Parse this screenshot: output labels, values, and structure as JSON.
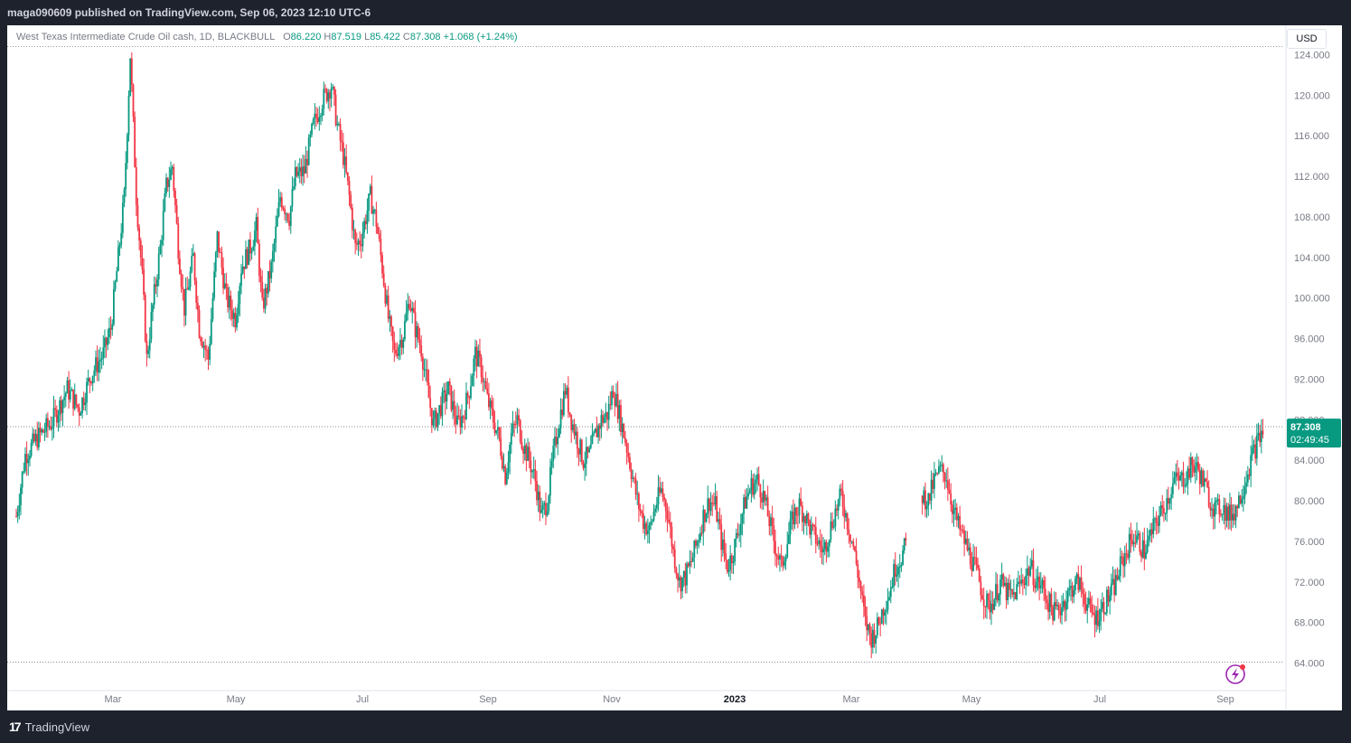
{
  "header": {
    "publish_text": "maga090609 published on TradingView.com, Sep 06, 2023 12:10 UTC-6"
  },
  "legend": {
    "symbol": "West Texas Intermediate Crude Oil cash, 1D, BLACKBULL",
    "o_label": "O",
    "o": "86.220",
    "h_label": "H",
    "h": "87.519",
    "l_label": "L",
    "l": "85.422",
    "c_label": "C",
    "c": "87.308",
    "change": "+1.068 (+1.24%)"
  },
  "currency": "USD",
  "price_tag": {
    "price": "87.308",
    "countdown": "02:49:45"
  },
  "footer": {
    "brand": "TradingView"
  },
  "colors": {
    "up": "#089981",
    "down": "#f23645",
    "grid": "#f0f3fa",
    "axis_text": "#787b86"
  },
  "chart_data": {
    "type": "candlestick",
    "title": "West Texas Intermediate Crude Oil cash, 1D, BLACKBULL",
    "ylim": [
      62,
      126
    ],
    "y_ticks": [
      "124.000",
      "120.000",
      "116.000",
      "112.000",
      "108.000",
      "104.000",
      "100.000",
      "96.000",
      "92.000",
      "88.000",
      "84.000",
      "80.000",
      "76.000",
      "72.000",
      "68.000",
      "64.000"
    ],
    "x_ticks": [
      "Mar",
      "May",
      "Jul",
      "Sep",
      "Nov",
      "2023",
      "Mar",
      "May",
      "Jul",
      "Sep"
    ],
    "last_price": 87.308,
    "reference_lines": [
      124.8,
      87.308,
      64.1
    ],
    "grid": false,
    "series": [
      {
        "price_path": [
          [
            0,
            78.5
          ],
          [
            6,
            84.5
          ],
          [
            14,
            86.2
          ],
          [
            24,
            87.8
          ],
          [
            34,
            91.0
          ],
          [
            42,
            89.0
          ],
          [
            50,
            92.5
          ],
          [
            58,
            94.5
          ],
          [
            63,
            97.0
          ],
          [
            68,
            104.0
          ],
          [
            72,
            110.0
          ],
          [
            76,
            124.0
          ],
          [
            80,
            110.0
          ],
          [
            84,
            102.0
          ],
          [
            87,
            94.0
          ],
          [
            90,
            98.0
          ],
          [
            96,
            105.0
          ],
          [
            100,
            111.0
          ],
          [
            104,
            113.0
          ],
          [
            108,
            105.0
          ],
          [
            112,
            99.0
          ],
          [
            118,
            104.0
          ],
          [
            122,
            97.0
          ],
          [
            128,
            94.0
          ],
          [
            134,
            106.0
          ],
          [
            140,
            100.0
          ],
          [
            146,
            98.0
          ],
          [
            150,
            103.0
          ],
          [
            156,
            105.0
          ],
          [
            160,
            107.0
          ],
          [
            164,
            99.0
          ],
          [
            170,
            103.0
          ],
          [
            176,
            110.0
          ],
          [
            182,
            108.0
          ],
          [
            186,
            112.0
          ],
          [
            192,
            112.5
          ],
          [
            198,
            117.0
          ],
          [
            204,
            119.5
          ],
          [
            210,
            121.0
          ],
          [
            214,
            117.0
          ],
          [
            218,
            114.0
          ],
          [
            222,
            110.0
          ],
          [
            226,
            105.0
          ],
          [
            230,
            106.0
          ],
          [
            236,
            110.0
          ],
          [
            240,
            107.5
          ],
          [
            244,
            103.0
          ],
          [
            248,
            98.0
          ],
          [
            252,
            94.5
          ],
          [
            258,
            96.5
          ],
          [
            262,
            100.0
          ],
          [
            266,
            97.0
          ],
          [
            270,
            95.0
          ],
          [
            274,
            91.0
          ],
          [
            278,
            87.5
          ],
          [
            282,
            89.0
          ],
          [
            288,
            91.0
          ],
          [
            294,
            87.5
          ],
          [
            298,
            88.5
          ],
          [
            302,
            91.0
          ],
          [
            306,
            94.5
          ],
          [
            310,
            93.0
          ],
          [
            314,
            90.0
          ],
          [
            318,
            88.0
          ],
          [
            322,
            86.0
          ],
          [
            326,
            82.5
          ],
          [
            330,
            86.5
          ],
          [
            334,
            88.0
          ],
          [
            338,
            85.5
          ],
          [
            342,
            84.0
          ],
          [
            346,
            82.0
          ],
          [
            350,
            78.5
          ],
          [
            354,
            80.0
          ],
          [
            358,
            84.5
          ],
          [
            362,
            88.0
          ],
          [
            366,
            91.0
          ],
          [
            370,
            88.0
          ],
          [
            374,
            86.0
          ],
          [
            378,
            84.0
          ],
          [
            382,
            84.5
          ],
          [
            386,
            86.5
          ],
          [
            390,
            88.0
          ],
          [
            394,
            88.5
          ],
          [
            398,
            91.0
          ],
          [
            402,
            88.5
          ],
          [
            406,
            86.0
          ],
          [
            410,
            83.0
          ],
          [
            414,
            80.0
          ],
          [
            418,
            78.0
          ],
          [
            422,
            77.0
          ],
          [
            426,
            79.5
          ],
          [
            430,
            81.0
          ],
          [
            434,
            79.0
          ],
          [
            438,
            75.0
          ],
          [
            442,
            72.0
          ],
          [
            446,
            72.5
          ],
          [
            450,
            74.0
          ],
          [
            454,
            76.0
          ],
          [
            458,
            78.5
          ],
          [
            462,
            80.0
          ],
          [
            466,
            79.5
          ],
          [
            470,
            76.0
          ],
          [
            474,
            73.5
          ],
          [
            478,
            75.0
          ],
          [
            482,
            77.5
          ],
          [
            486,
            80.0
          ],
          [
            490,
            81.5
          ],
          [
            494,
            82.0
          ],
          [
            498,
            80.5
          ],
          [
            502,
            78.0
          ],
          [
            506,
            75.5
          ],
          [
            510,
            73.5
          ],
          [
            514,
            76.0
          ],
          [
            518,
            78.5
          ],
          [
            522,
            79.5
          ],
          [
            526,
            78.5
          ],
          [
            530,
            77.0
          ],
          [
            534,
            76.0
          ],
          [
            538,
            75.0
          ],
          [
            542,
            77.0
          ],
          [
            546,
            79.0
          ],
          [
            550,
            80.5
          ],
          [
            554,
            78.0
          ],
          [
            558,
            75.5
          ],
          [
            562,
            72.0
          ],
          [
            566,
            68.0
          ],
          [
            570,
            66.5
          ],
          [
            574,
            67.5
          ],
          [
            578,
            69.5
          ],
          [
            582,
            71.0
          ],
          [
            586,
            73.5
          ],
          [
            590,
            74.5
          ],
          [
            594,
            76.0
          ],
          [
            598,
            null
          ],
          [
            604,
            80.5
          ],
          [
            608,
            80.0
          ],
          [
            612,
            82.0
          ],
          [
            616,
            83.0
          ],
          [
            620,
            82.5
          ],
          [
            624,
            79.5
          ],
          [
            628,
            77.5
          ],
          [
            632,
            76.0
          ],
          [
            636,
            74.5
          ],
          [
            640,
            73.0
          ],
          [
            644,
            71.0
          ],
          [
            648,
            69.5
          ],
          [
            652,
            70.5
          ],
          [
            656,
            72.0
          ],
          [
            660,
            71.0
          ],
          [
            664,
            70.5
          ],
          [
            668,
            71.5
          ],
          [
            672,
            72.5
          ],
          [
            676,
            73.5
          ],
          [
            680,
            72.0
          ],
          [
            684,
            71.5
          ],
          [
            688,
            70.0
          ],
          [
            692,
            69.0
          ],
          [
            696,
            69.5
          ],
          [
            700,
            70.5
          ],
          [
            704,
            71.5
          ],
          [
            708,
            72.0
          ],
          [
            712,
            70.5
          ],
          [
            716,
            69.0
          ],
          [
            720,
            68.5
          ],
          [
            724,
            69.5
          ],
          [
            728,
            70.5
          ],
          [
            732,
            71.5
          ],
          [
            736,
            73.5
          ],
          [
            740,
            75.0
          ],
          [
            744,
            76.5
          ],
          [
            748,
            76.0
          ],
          [
            752,
            75.0
          ],
          [
            756,
            76.5
          ],
          [
            760,
            78.0
          ],
          [
            764,
            79.0
          ],
          [
            768,
            80.5
          ],
          [
            772,
            82.0
          ],
          [
            776,
            82.0
          ],
          [
            780,
            82.5
          ],
          [
            784,
            83.5
          ],
          [
            788,
            83.0
          ],
          [
            792,
            81.5
          ],
          [
            796,
            80.0
          ],
          [
            800,
            79.0
          ],
          [
            804,
            79.5
          ],
          [
            808,
            78.5
          ],
          [
            812,
            79.0
          ],
          [
            816,
            80.5
          ],
          [
            820,
            82.5
          ],
          [
            824,
            84.5
          ],
          [
            828,
            86.0
          ],
          [
            832,
            87.3
          ]
        ]
      }
    ]
  }
}
